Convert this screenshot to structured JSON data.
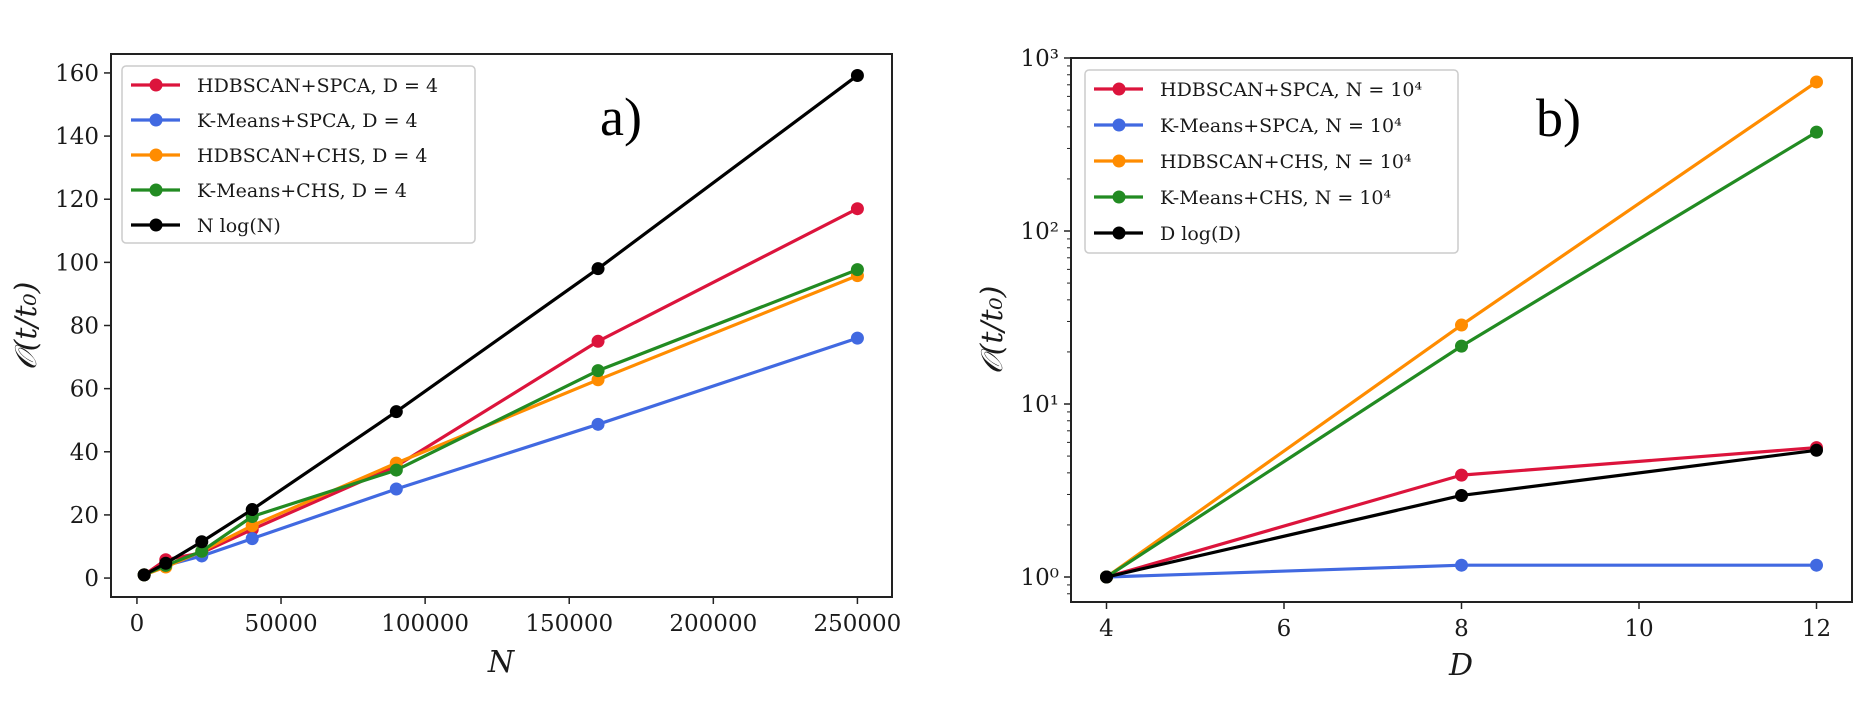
{
  "chart_data": [
    {
      "id": "a",
      "type": "line",
      "panel_label": "a)",
      "title": "",
      "xlabel": "N",
      "ylabel": "𝒪(t/t₀)",
      "xscale": "linear",
      "yscale": "linear",
      "xlim": [
        -9000,
        262000
      ],
      "ylim": [
        -6,
        166
      ],
      "xticks": [
        0,
        50000,
        100000,
        150000,
        200000,
        250000
      ],
      "xtick_labels": [
        "0",
        "50000",
        "100000",
        "150000",
        "200000",
        "250000"
      ],
      "yticks": [
        0,
        20,
        40,
        60,
        80,
        100,
        120,
        140,
        160
      ],
      "ytick_labels": [
        "0",
        "20",
        "40",
        "60",
        "80",
        "100",
        "120",
        "140",
        "160"
      ],
      "grid": false,
      "legend_position": "top-left",
      "x": [
        2500,
        10000,
        22500,
        40000,
        90000,
        160000,
        250000
      ],
      "series": [
        {
          "name": "HDBSCAN+SPCA, D = 4",
          "color": "#dc143c",
          "values": [
            1,
            5.8,
            8,
            15.4,
            35.5,
            75,
            117
          ]
        },
        {
          "name": "K-Means+SPCA, D = 4",
          "color": "#4169e1",
          "values": [
            1,
            4,
            7,
            12.5,
            28.2,
            48.7,
            76
          ]
        },
        {
          "name": "HDBSCAN+CHS, D = 4",
          "color": "#ff8c00",
          "values": [
            1,
            3.5,
            8.5,
            16.6,
            36.4,
            62.8,
            95.8
          ]
        },
        {
          "name": "K-Means+CHS, D = 4",
          "color": "#228b22",
          "values": [
            1,
            4,
            8.5,
            19.5,
            34.2,
            65.7,
            97.7
          ]
        },
        {
          "name": "N log(N)",
          "color": "#000000",
          "values": [
            1,
            4.7,
            11.5,
            21.7,
            52.7,
            98,
            159.2
          ]
        }
      ]
    },
    {
      "id": "b",
      "type": "line",
      "panel_label": "b)",
      "title": "",
      "xlabel": "D",
      "ylabel": "𝒪(t/t₀)",
      "xscale": "linear",
      "yscale": "log",
      "xlim": [
        3.6,
        12.4
      ],
      "ylim": [
        0.717,
        1000
      ],
      "xticks": [
        4,
        6,
        8,
        10,
        12
      ],
      "xtick_labels": [
        "4",
        "6",
        "8",
        "10",
        "12"
      ],
      "yticks": [
        1,
        10,
        100,
        1000
      ],
      "ytick_labels": [
        "10⁰",
        "10¹",
        "10²",
        "10³"
      ],
      "grid": false,
      "legend_position": "top-left",
      "x": [
        4,
        8,
        12
      ],
      "series": [
        {
          "name": "HDBSCAN+SPCA, N = 10⁴",
          "color": "#dc143c",
          "values": [
            1,
            3.88,
            5.6
          ]
        },
        {
          "name": "K-Means+SPCA, N = 10⁴",
          "color": "#4169e1",
          "values": [
            1,
            1.17,
            1.17
          ]
        },
        {
          "name": "HDBSCAN+CHS, N = 10⁴",
          "color": "#ff8c00",
          "values": [
            1,
            28.6,
            727
          ]
        },
        {
          "name": "K-Means+CHS, N = 10⁴",
          "color": "#228b22",
          "values": [
            1,
            21.6,
            373
          ]
        },
        {
          "name": "D log(D)",
          "color": "#000000",
          "values": [
            1,
            2.96,
            5.4
          ]
        }
      ]
    }
  ]
}
